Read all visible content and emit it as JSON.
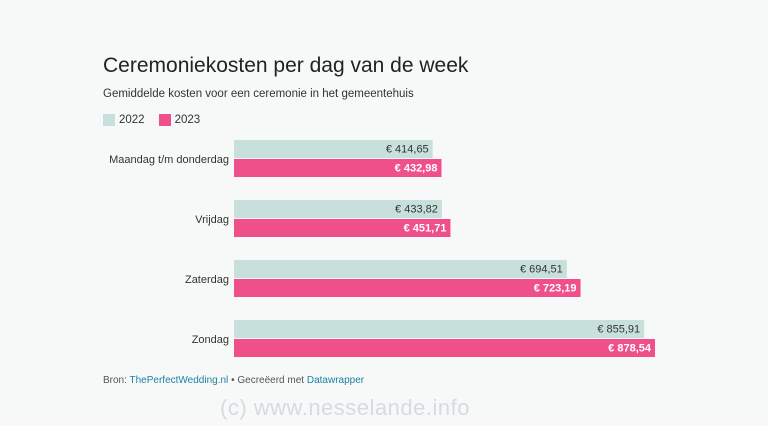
{
  "colors": {
    "background": "#f7f9f9",
    "series_2022": "#c8e0db",
    "series_2023": "#f0508a",
    "link": "#1d81a2"
  },
  "chart_data": {
    "type": "bar",
    "orientation": "horizontal",
    "title": "Ceremoniekosten per dag van de week",
    "subtitle": "Gemiddelde kosten voor een ceremonie in het gemeentehuis",
    "categories": [
      "Maandag t/m donderdag",
      "Vrijdag",
      "Zaterdag",
      "Zondag"
    ],
    "series": [
      {
        "name": "2022",
        "values": [
          414.65,
          433.82,
          694.51,
          855.91
        ],
        "labels": [
          "€ 414,65",
          "€ 433,82",
          "€ 694,51",
          "€ 855,91"
        ]
      },
      {
        "name": "2023",
        "values": [
          432.98,
          451.71,
          723.19,
          878.54
        ],
        "labels": [
          "€ 432,98",
          "€ 451,71",
          "€ 723,19",
          "€ 878,54"
        ]
      }
    ],
    "xlim": [
      0,
      878.54
    ],
    "legend_placement": "top-left",
    "grid": false
  },
  "source": {
    "prefix": "Bron:",
    "source_link": "ThePerfectWedding.nl",
    "separator": "•",
    "made_with": "Gecreëerd met",
    "tool_link": "Datawrapper"
  },
  "watermark": "(c)  www.nesselande.info"
}
